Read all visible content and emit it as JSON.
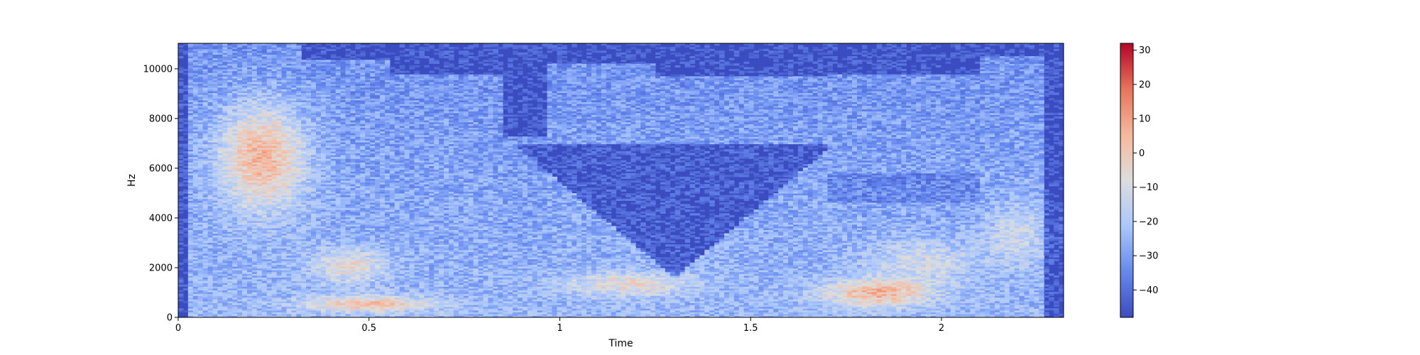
{
  "chart_data": [
    {
      "type": "heatmap",
      "subtype": "spectrogram",
      "xlabel": "Time",
      "ylabel": "Hz",
      "xlim": [
        0,
        2.32
      ],
      "ylim": [
        0,
        11025
      ],
      "x_ticks": [
        0,
        0.5,
        1,
        1.5,
        2
      ],
      "x_tick_labels": [
        "0",
        "0.5",
        "1",
        "1.5",
        "2"
      ],
      "y_ticks": [
        0,
        2000,
        4000,
        6000,
        8000,
        10000
      ],
      "y_tick_labels": [
        "0",
        "2000",
        "4000",
        "6000",
        "8000",
        "10000"
      ],
      "colormap": "coolwarm",
      "color_stops": [
        "#3b4cc0",
        "#6688ee",
        "#aac7fd",
        "#dddddd",
        "#f7b89c",
        "#e7745b",
        "#b40426"
      ],
      "grid": false,
      "colorbar": {
        "position": "right",
        "range": [
          -48,
          32
        ],
        "ticks": [
          -40,
          -30,
          -20,
          -10,
          0,
          10,
          20,
          30
        ],
        "tick_labels": [
          "−40",
          "−30",
          "−20",
          "−10",
          "0",
          "10",
          "20",
          "30"
        ]
      }
    }
  ]
}
